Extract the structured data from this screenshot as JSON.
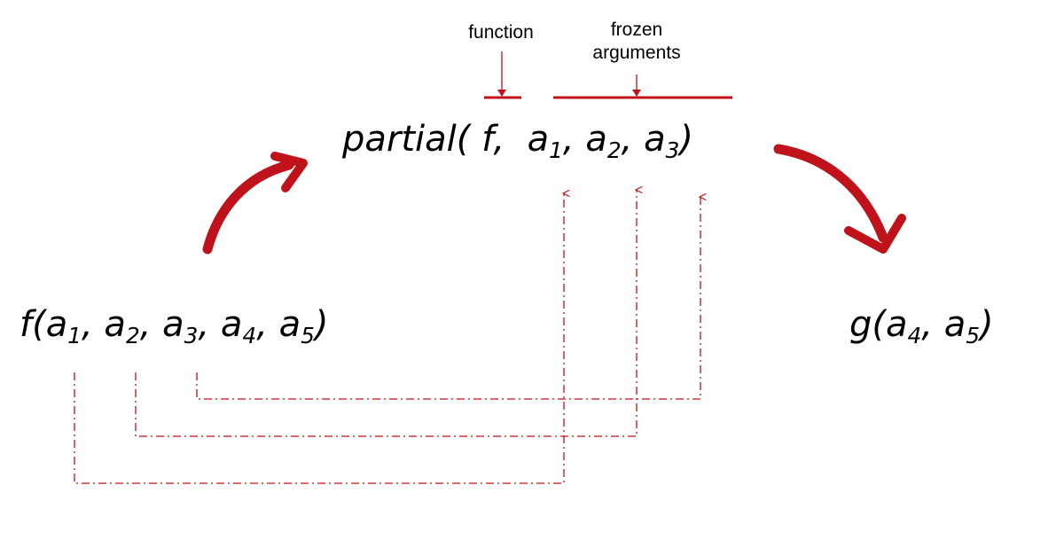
{
  "annotations": {
    "function_label": "function",
    "frozen_label_line1": "frozen",
    "frozen_label_line2": "arguments"
  },
  "partial_expr": {
    "head": "partial( f,",
    "args": [
      {
        "name": "a",
        "sub": "1",
        "sep": ","
      },
      {
        "name": "a",
        "sub": "2",
        "sep": ","
      },
      {
        "name": "a",
        "sub": "3",
        "sep": ")"
      }
    ]
  },
  "source_expr": {
    "head": "f(",
    "args": [
      {
        "name": "a",
        "sub": "1",
        "sep": ","
      },
      {
        "name": "a",
        "sub": "2",
        "sep": ","
      },
      {
        "name": "a",
        "sub": "3",
        "sep": ","
      },
      {
        "name": "a",
        "sub": "4",
        "sep": ","
      },
      {
        "name": "a",
        "sub": "5",
        "sep": ")"
      }
    ]
  },
  "result_expr": {
    "head": "g(",
    "args": [
      {
        "name": "a",
        "sub": "4",
        "sep": ","
      },
      {
        "name": "a",
        "sub": "5",
        "sep": ")"
      }
    ]
  },
  "colors": {
    "accent": "#c0121a",
    "text": "#000000"
  }
}
